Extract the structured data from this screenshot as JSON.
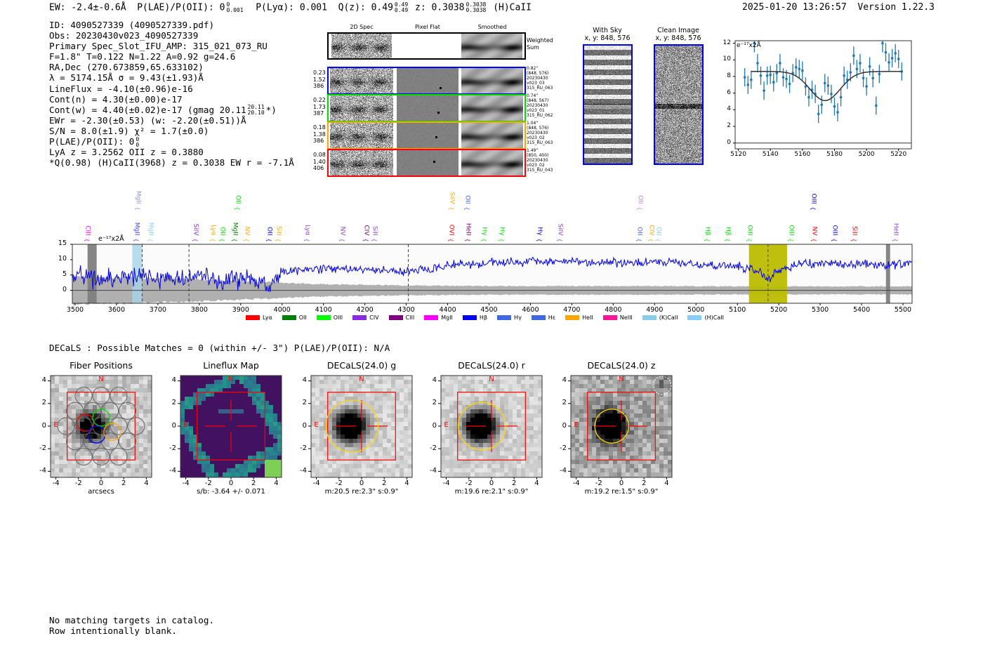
{
  "header": {
    "ew": "EW: -2.4±-0.6Å",
    "plae": "P(LAE)/P(OII): 0",
    "plae_sup": "0",
    "plae_sub": "0.001",
    "plya": "P(Lyα): 0.001",
    "qz": "Q(z): 0.49",
    "qz_sup": "0.49",
    "qz_sub": "0.49",
    "z": "z: 0.3038",
    "z_sup": "0.3038",
    "z_sub": "0.3038",
    "line": "(H)CaII",
    "timestamp": "2025-01-20 13:26:57",
    "version": "Version 1.22.3"
  },
  "info": [
    {
      "text": "ID: 4090527339 (4090527339.pdf)"
    },
    {
      "text": "Obs: 20230430v023_4090527339"
    },
    {
      "text": "Primary Spec_Slot_IFU_AMP: 315_021_073_RU"
    },
    {
      "text": "F=1.8\"  T=0.122  N=1.22  A=0.92  g=24.6"
    },
    {
      "text": "RA,Dec (270.673859,65.633102)"
    },
    {
      "text": "λ = 5174.15Å  σ = 9.43(±1.93)Å"
    },
    {
      "text": "LineFlux = -4.10(±0.96)e-16"
    },
    {
      "text": "Cont(n) = 4.30(±0.00)e-17"
    },
    {
      "text": "Cont(w) = 4.40(±0.02)e-17 (gmag 20.11",
      "sup": "20.11",
      "sub": "20.10",
      "tail": "*)"
    },
    {
      "text": "EWr = -2.30(±0.53) (w: -2.20(±0.51))Å"
    },
    {
      "text": "S/N = 8.0(±1.9)  χ² = 1.7(±0.0)"
    },
    {
      "text": "P(LAE)/P(OII): 0",
      "sup": "0",
      "sub": "0"
    },
    {
      "text": "LyA z = 3.2562  OII z = 0.3880"
    },
    {
      "text": "*Q(0.98) (H)CaII(3968) z = 0.3038  EW r = -7.1Å"
    }
  ],
  "spec2d": {
    "headers": [
      "2D Spec",
      "Pixel Flat",
      "Smoothed"
    ],
    "weighted_label": "Weighted Sum",
    "rows": [
      {
        "color": "#0000ff",
        "left": [
          "0.23",
          "1.52",
          "386"
        ],
        "right": [
          "0.82\"",
          "(848, 576)",
          "20230430",
          "v023_03",
          "315_RU_063"
        ]
      },
      {
        "color": "#00e000",
        "left": [
          "0.22",
          "1.73",
          "387"
        ],
        "right": [
          "0.74\"",
          "(848, 567)",
          "20230430",
          "v023_01",
          "315_RU_062"
        ]
      },
      {
        "color": "#ffa500",
        "left": [
          "0.18",
          "1.38",
          "386"
        ],
        "right": [
          "1.04\"",
          "(848, 576)",
          "20230430",
          "v023_02",
          "315_RU_063"
        ]
      },
      {
        "color": "#ff0000",
        "left": [
          "0.08",
          "1.40",
          "406"
        ],
        "right": [
          "1.49\"",
          "(850, 400)",
          "20230430",
          "v023_02",
          "315_RU_043"
        ]
      }
    ]
  },
  "sky": {
    "with_sky": "With Sky",
    "with_sky_xy": "x, y: 848, 576",
    "clean": "Clean Image",
    "clean_xy": "x, y: 848, 576"
  },
  "chart_data": [
    {
      "type": "scatter",
      "name": "line-fit",
      "ylabel": "e⁻¹⁷x2Å",
      "xlim": [
        5118,
        5228
      ],
      "ylim": [
        -0.7,
        12.3
      ],
      "xticks": [
        "5120",
        "5140",
        "5160",
        "5180",
        "5200",
        "5220"
      ],
      "yticks": [
        "0",
        "2",
        "4",
        "6",
        "8",
        "10",
        "12"
      ],
      "x": [
        5124,
        5126,
        5128,
        5130,
        5132,
        5134,
        5136,
        5138,
        5140,
        5142,
        5144,
        5146,
        5148,
        5150,
        5152,
        5154,
        5156,
        5158,
        5160,
        5162,
        5164,
        5166,
        5168,
        5170,
        5172,
        5174,
        5176,
        5178,
        5180,
        5182,
        5184,
        5186,
        5188,
        5190,
        5192,
        5194,
        5196,
        5198,
        5200,
        5202,
        5204,
        5206,
        5208,
        5210,
        5212,
        5214,
        5216,
        5218,
        5220,
        5222
      ],
      "y": [
        7.9,
        7.0,
        7.6,
        12.0,
        9.6,
        8.1,
        6.3,
        8.1,
        8.2,
        7.3,
        8.4,
        9.6,
        7.9,
        7.7,
        7.1,
        8.4,
        9.1,
        8.9,
        8.7,
        6.8,
        5.5,
        6.4,
        5.9,
        3.5,
        4.6,
        7.2,
        6.9,
        5.9,
        4.4,
        3.7,
        5.5,
        8.1,
        7.6,
        8.5,
        10.5,
        8.9,
        9.6,
        7.8,
        6.8,
        9.2,
        7.8,
        4.5,
        8.3,
        12.0,
        10.9,
        9.7,
        10.2,
        10.8,
        10.1,
        8.6
      ],
      "err": 1.1,
      "fit": {
        "continuum": 8.6,
        "center": 5174.15,
        "sigma": 9.43,
        "depth": 3.5,
        "range": [
          5128,
          5222
        ]
      }
    },
    {
      "type": "line",
      "name": "full-spectrum",
      "ylabel": "e⁻¹⁷x2Å",
      "xlim": [
        3493,
        5522
      ],
      "ylim": [
        -4.2,
        15
      ],
      "xticks": [
        "3500",
        "3600",
        "3700",
        "3800",
        "3900",
        "4000",
        "4100",
        "4200",
        "4300",
        "4400",
        "4500",
        "4600",
        "4700",
        "4800",
        "4900",
        "5000",
        "5100",
        "5200",
        "5300",
        "5400",
        "5500"
      ],
      "yticks": [
        "0",
        "5",
        "10",
        "15"
      ],
      "continuum_x": [
        3493,
        3550,
        3600,
        3650,
        3700,
        3750,
        3800,
        3850,
        3900,
        3950,
        3970,
        4000,
        4100,
        4200,
        4300,
        4350,
        4400,
        4500,
        4600,
        4700,
        4800,
        4900,
        5000,
        5100,
        5130,
        5160,
        5175,
        5190,
        5210,
        5250,
        5300,
        5400,
        5522
      ],
      "continuum_y": [
        5,
        4,
        4,
        5,
        4,
        4,
        5,
        3,
        4,
        2.5,
        1,
        6,
        7,
        7,
        6,
        7,
        8,
        9,
        9.5,
        9.5,
        9,
        9,
        8.5,
        8,
        7,
        5.5,
        3.5,
        5,
        7,
        8.5,
        9,
        8.5,
        8.5
      ],
      "noise_y": [
        4.5,
        4,
        3,
        2,
        1.6,
        1.4,
        1.4,
        1.4,
        1.3,
        1.3,
        1.3
      ],
      "shaded": [
        {
          "from": 3530,
          "to": 3552,
          "color": "#808080"
        },
        {
          "from": 3638,
          "to": 3662,
          "color": "#a8d4ea"
        },
        {
          "from": 5128,
          "to": 5220,
          "color": "#bcbc00"
        },
        {
          "from": 5459,
          "to": 5469,
          "color": "#808080"
        }
      ],
      "dashed": [
        3662,
        3775,
        4305,
        5174
      ],
      "lines_lower": [
        {
          "label": "CIII",
          "wave": 3529,
          "color": "#ff00ff"
        },
        {
          "label": "MgII",
          "wave": 3648,
          "color": "#4040ff"
        },
        {
          "label": "MgII",
          "wave": 3682,
          "color": "#87ceeb"
        },
        {
          "label": "SiIV",
          "wave": 3790,
          "color": "#8a2be2"
        },
        {
          "label": "Lyα",
          "wave": 3832,
          "color": "#ffa500"
        },
        {
          "label": "OII",
          "wave": 3855,
          "color": "#00dd00"
        },
        {
          "label": "MgII",
          "wave": 3885,
          "color": "#008000"
        },
        {
          "label": "NV",
          "wave": 3914,
          "color": "#ffa500"
        },
        {
          "label": "OII",
          "wave": 3968,
          "color": "#0000ff"
        },
        {
          "label": "SiII",
          "wave": 3990,
          "color": "#ffa500"
        },
        {
          "label": "Lyα",
          "wave": 4060,
          "color": "#9040e0"
        },
        {
          "label": "NV",
          "wave": 4145,
          "color": "#9040e0"
        },
        {
          "label": "CIV",
          "wave": 4202,
          "color": "#800080"
        },
        {
          "label": "SiII",
          "wave": 4223,
          "color": "#9040e0"
        },
        {
          "label": "OVI",
          "wave": 4408,
          "color": "#ff0000"
        },
        {
          "label": "HeII",
          "wave": 4448,
          "color": "#800080"
        },
        {
          "label": "Hγ",
          "wave": 4487,
          "color": "#00dd00"
        },
        {
          "label": "Hγ",
          "wave": 4530,
          "color": "#00dd00"
        },
        {
          "label": "Hγ",
          "wave": 4621,
          "color": "#0000cc"
        },
        {
          "label": "SiIV",
          "wave": 4670,
          "color": "#9040e0"
        },
        {
          "label": "OII",
          "wave": 4862,
          "color": "#4060ff"
        },
        {
          "label": "CIV",
          "wave": 4891,
          "color": "#ffa500"
        },
        {
          "label": "OII",
          "wave": 4908,
          "color": "#87ceeb"
        },
        {
          "label": "Hβ",
          "wave": 5027,
          "color": "#00dd00"
        },
        {
          "label": "Hβ",
          "wave": 5076,
          "color": "#00dd00"
        },
        {
          "label": "OIII",
          "wave": 5128,
          "color": "#00dd00"
        },
        {
          "label": "OIII",
          "wave": 5229,
          "color": "#00dd00"
        },
        {
          "label": "NV",
          "wave": 5285,
          "color": "#ff0000"
        },
        {
          "label": "OIII",
          "wave": 5334,
          "color": "#0000ff"
        },
        {
          "label": "SiII",
          "wave": 5381,
          "color": "#ff0000"
        },
        {
          "label": "HeII",
          "wave": 5481,
          "color": "#9040e0"
        }
      ],
      "lines_upper": [
        {
          "label": "MgII",
          "wave": 3651,
          "color": "#9090e0"
        },
        {
          "label": "OII",
          "wave": 3892,
          "color": "#00dd00"
        },
        {
          "label": "SiIV",
          "wave": 4409,
          "color": "#ffa500"
        },
        {
          "label": "OII",
          "wave": 4447,
          "color": "#4060ff"
        },
        {
          "label": "OII",
          "wave": 4864,
          "color": "#c080e0"
        },
        {
          "label": "OIII",
          "wave": 5283,
          "color": "#0000cc"
        }
      ],
      "legend": [
        {
          "label": "Lyα",
          "color": "#ff0000"
        },
        {
          "label": "OII",
          "color": "#008000"
        },
        {
          "label": "OIII",
          "color": "#00ff00"
        },
        {
          "label": "CIV",
          "color": "#8a2be2"
        },
        {
          "label": "CIII",
          "color": "#800080"
        },
        {
          "label": "MgII",
          "color": "#ff00ff"
        },
        {
          "label": "Hβ",
          "color": "#0000ff"
        },
        {
          "label": "Hγ",
          "color": "#4169e1"
        },
        {
          "label": "Hε",
          "color": "#4169e1"
        },
        {
          "label": "HeII",
          "color": "#ffa500"
        },
        {
          "label": "NeIII",
          "color": "#ff1493"
        },
        {
          "label": "(K)CaII",
          "color": "#87ceeb"
        },
        {
          "label": "(H)CaII",
          "color": "#87cefa"
        }
      ]
    }
  ],
  "decals": {
    "summary": "DECaLS : Possible Matches = 0 (within +/- 3\")  P(LAE)/P(OII): N/A",
    "ticks": [
      "-4",
      "-2",
      "0",
      "2",
      "4"
    ],
    "north": "N",
    "east": "E",
    "panels": [
      {
        "title": "Fiber Positions",
        "caption": "arcsecs",
        "kind": "fiber"
      },
      {
        "title": "Lineflux Map",
        "caption": "s/b: -3.64 +/- 0.071",
        "kind": "flux"
      },
      {
        "title": "DECaLS(24.0) g",
        "caption": "m:20.5  re:2.3\"  s:0.9\"",
        "kind": "g",
        "r": 2.3
      },
      {
        "title": "DECaLS(24.0) r",
        "caption": "m:19.6  re:2.1\"  s:0.9\"",
        "kind": "r",
        "r": 2.1
      },
      {
        "title": "DECaLS(24.0) z",
        "caption": "m:19.2  re:1.5\"  s:0.9\"",
        "kind": "z",
        "r": 1.5
      }
    ]
  },
  "footer": {
    "line1": "No matching targets in catalog.",
    "line2": "Row intentionally blank."
  }
}
